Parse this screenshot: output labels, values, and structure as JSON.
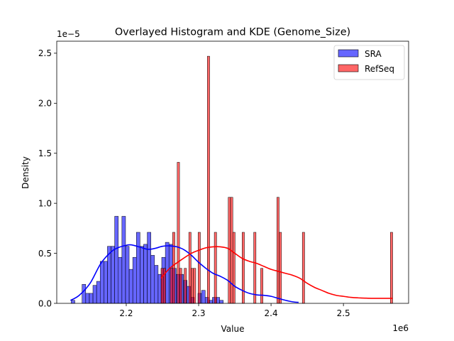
{
  "chart_data": {
    "type": "bar",
    "title": "Overlayed Histogram and KDE (Genome_Size)",
    "xlabel": "Value",
    "ylabel": "Density",
    "x_offset_label": "1e6",
    "y_offset_label": "1e−5",
    "x_scale": 1000000,
    "y_scale": 1e-05,
    "xlim": [
      2104000,
      2590000
    ],
    "ylim": [
      0,
      2.62
    ],
    "xticks": [
      {
        "v": 2.2,
        "label": "2.2"
      },
      {
        "v": 2.3,
        "label": "2.3"
      },
      {
        "v": 2.4,
        "label": "2.4"
      },
      {
        "v": 2.5,
        "label": "2.5"
      }
    ],
    "yticks": [
      {
        "v": 0,
        "label": "0.0"
      },
      {
        "v": 0.5,
        "label": "0.5"
      },
      {
        "v": 1.0,
        "label": "1.0"
      },
      {
        "v": 1.5,
        "label": "1.5"
      },
      {
        "v": 2.0,
        "label": "2.0"
      },
      {
        "v": 2.5,
        "label": "2.5"
      }
    ],
    "grid": false,
    "legend_position": "top-right",
    "series": [
      {
        "name": "SRA",
        "color": "#0000ff",
        "bin_start": 2124000,
        "bin_width": 5000,
        "values": [
          0.03,
          0,
          0,
          0.19,
          0.1,
          0.1,
          0.18,
          0.22,
          0.42,
          0.42,
          0.57,
          0.57,
          0.87,
          0.46,
          0.87,
          0.57,
          0.34,
          0.46,
          0.71,
          0.57,
          0.59,
          0.71,
          0.48,
          0.38,
          0.29,
          0.46,
          0.61,
          0.59,
          0.35,
          0.29,
          0.29,
          0.23,
          0.17,
          0.06,
          0,
          0.1,
          0.13,
          0.06,
          0.03,
          0.06,
          0.06,
          0.03
        ],
        "kde": {
          "x": [
            2123000,
            2135000,
            2150000,
            2165000,
            2180000,
            2190000,
            2200000,
            2205000,
            2210000,
            2220000,
            2230000,
            2240000,
            2250000,
            2260000,
            2270000,
            2280000,
            2290000,
            2300000,
            2310000,
            2320000,
            2330000,
            2340000,
            2350000,
            2360000,
            2370000,
            2380000,
            2390000,
            2400000,
            2410000,
            2420000,
            2430000,
            2438000
          ],
          "y": [
            0.03,
            0.08,
            0.2,
            0.4,
            0.52,
            0.56,
            0.58,
            0.585,
            0.58,
            0.56,
            0.54,
            0.55,
            0.57,
            0.575,
            0.565,
            0.535,
            0.48,
            0.41,
            0.35,
            0.3,
            0.27,
            0.23,
            0.17,
            0.13,
            0.1,
            0.085,
            0.08,
            0.07,
            0.05,
            0.03,
            0.015,
            0.01
          ]
        }
      },
      {
        "name": "RefSeq",
        "color": "#ff0000",
        "bin_start": 2248000,
        "bin_width": 3200,
        "values": [
          0.35,
          0.35,
          0,
          0,
          0.35,
          0.71,
          0,
          1.41,
          0.35,
          0,
          0.35,
          0,
          0.71,
          0.35,
          0.35,
          0,
          0.71,
          0,
          0,
          0,
          2.47,
          0,
          0,
          0.71,
          0,
          0,
          0,
          0,
          0,
          1.06,
          1.06,
          0.71,
          0,
          0,
          0,
          0.71,
          0,
          0,
          0,
          0,
          0.71,
          0,
          0,
          0.35,
          0,
          0,
          0,
          0,
          0,
          0,
          1.06,
          0.71,
          0,
          0,
          0,
          0,
          0,
          0,
          0,
          0,
          0,
          0.71,
          0,
          0,
          0,
          0,
          0,
          0,
          0,
          0,
          0,
          0,
          0,
          0,
          0,
          0,
          0,
          0,
          0,
          0,
          0,
          0,
          0,
          0,
          0,
          0,
          0,
          0,
          0,
          0,
          0,
          0,
          0,
          0,
          0,
          0,
          0,
          0,
          0,
          0.71
        ],
        "kde": {
          "x": [
            2248000,
            2260000,
            2275000,
            2290000,
            2300000,
            2310000,
            2320000,
            2330000,
            2340000,
            2350000,
            2360000,
            2370000,
            2380000,
            2390000,
            2400000,
            2410000,
            2420000,
            2430000,
            2440000,
            2450000,
            2460000,
            2470000,
            2480000,
            2490000,
            2500000,
            2510000,
            2520000,
            2530000,
            2540000,
            2550000,
            2560000,
            2568000
          ],
          "y": [
            0.25,
            0.35,
            0.43,
            0.5,
            0.53,
            0.555,
            0.565,
            0.565,
            0.55,
            0.5,
            0.45,
            0.42,
            0.4,
            0.37,
            0.34,
            0.32,
            0.3,
            0.28,
            0.25,
            0.2,
            0.16,
            0.13,
            0.1,
            0.08,
            0.07,
            0.06,
            0.055,
            0.052,
            0.05,
            0.05,
            0.05,
            0.05
          ]
        }
      }
    ]
  }
}
